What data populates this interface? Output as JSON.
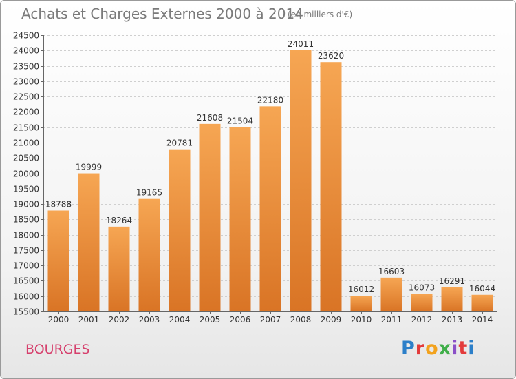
{
  "header": {
    "title": "Achats et Charges Externes 2000 à 2014",
    "subtitle": "(en milliers d'€)"
  },
  "footer": {
    "city": "BOURGES",
    "logo_text": "Proxiti"
  },
  "colors": {
    "bar_light": "#f6a653",
    "bar_dark": "#d97425",
    "city": "#d6406d",
    "logo": [
      "#2c7fc9",
      "#e33b3b",
      "#f2a21d",
      "#3fae49",
      "#8a4fc7",
      "#e33b3b",
      "#2c7fc9"
    ]
  },
  "chart_data": {
    "type": "bar",
    "title": "Achats et Charges Externes 2000 à 2014",
    "subtitle": "(en milliers d'€)",
    "categories": [
      "2000",
      "2001",
      "2002",
      "2003",
      "2004",
      "2005",
      "2006",
      "2007",
      "2008",
      "2009",
      "2010",
      "2011",
      "2012",
      "2013",
      "2014"
    ],
    "values": [
      18788,
      19999,
      18264,
      19165,
      20781,
      21608,
      21504,
      22180,
      24011,
      23620,
      16012,
      16603,
      16073,
      16291,
      16044
    ],
    "ylim": [
      15500,
      24500
    ],
    "yticks": [
      15500,
      16000,
      16500,
      17000,
      17500,
      18000,
      18500,
      19000,
      19500,
      20000,
      20500,
      21000,
      21500,
      22000,
      22500,
      23000,
      23500,
      24000,
      24500
    ],
    "grid": true,
    "xlabel": "",
    "ylabel": ""
  }
}
